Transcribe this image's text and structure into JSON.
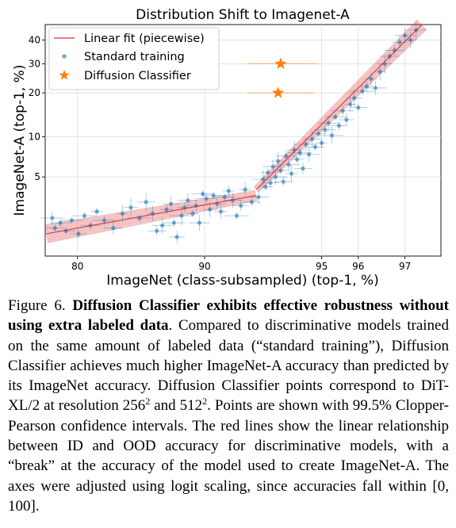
{
  "chart_data": {
    "type": "scatter",
    "title": "Distribution Shift to Imagenet-A",
    "xlabel": "ImageNet (class-subsampled) (top-1, %)",
    "ylabel": "ImageNet-A (top-1, %)",
    "x_scale": "logit",
    "y_scale": "logit",
    "xlim": [
      76.5,
      97.6
    ],
    "ylim": [
      1.2,
      47
    ],
    "x_ticks": [
      80,
      90,
      95,
      96,
      97
    ],
    "y_ticks": [
      5,
      10,
      20,
      30,
      40
    ],
    "grid": true,
    "legend_position": "top-left",
    "legend": [
      "Linear fit (piecewise)",
      "Standard training",
      "Diffusion Classifier"
    ],
    "colors": {
      "fit": "#d62728",
      "standard": "#1f77b4",
      "diffusion": "#ff7f0e"
    },
    "series": [
      {
        "name": "Linear fit (piecewise)",
        "kind": "line",
        "points": [
          [
            76.6,
            1.8
          ],
          [
            92.6,
            3.6
          ],
          [
            92.6,
            4.0
          ],
          [
            97.3,
            47
          ]
        ]
      },
      {
        "name": "Standard training",
        "kind": "scatter",
        "points": [
          [
            77.3,
            2.4
          ],
          [
            77.6,
            2.0
          ],
          [
            78.2,
            2.2
          ],
          [
            78.8,
            1.9
          ],
          [
            79.4,
            2.3
          ],
          [
            80.1,
            1.8
          ],
          [
            80.7,
            2.5
          ],
          [
            81.3,
            2.1
          ],
          [
            81.9,
            2.7
          ],
          [
            82.6,
            2.3
          ],
          [
            83.4,
            2.0
          ],
          [
            84.2,
            2.6
          ],
          [
            84.9,
            2.9
          ],
          [
            85.6,
            2.4
          ],
          [
            86.1,
            3.2
          ],
          [
            86.6,
            2.6
          ],
          [
            86.9,
            1.9
          ],
          [
            87.3,
            2.1
          ],
          [
            87.6,
            2.8
          ],
          [
            87.9,
            3.1
          ],
          [
            88.1,
            2.2
          ],
          [
            88.3,
            1.7
          ],
          [
            88.6,
            2.5
          ],
          [
            88.8,
            2.9
          ],
          [
            89.0,
            3.3
          ],
          [
            89.3,
            2.6
          ],
          [
            89.5,
            3.0
          ],
          [
            89.7,
            2.2
          ],
          [
            89.9,
            3.7
          ],
          [
            90.1,
            3.4
          ],
          [
            90.3,
            2.8
          ],
          [
            90.5,
            3.6
          ],
          [
            90.7,
            3.1
          ],
          [
            90.9,
            2.7
          ],
          [
            91.1,
            3.5
          ],
          [
            91.3,
            3.9
          ],
          [
            91.5,
            3.3
          ],
          [
            91.7,
            2.5
          ],
          [
            91.9,
            3.0
          ],
          [
            92.1,
            4.0
          ],
          [
            92.4,
            3.2
          ],
          [
            92.7,
            3.5
          ],
          [
            92.9,
            4.8
          ],
          [
            93.0,
            4.2
          ],
          [
            93.1,
            5.4
          ],
          [
            93.2,
            4.5
          ],
          [
            93.3,
            6.0
          ],
          [
            93.4,
            5.0
          ],
          [
            93.5,
            6.6
          ],
          [
            93.6,
            5.6
          ],
          [
            93.7,
            4.6
          ],
          [
            93.8,
            7.2
          ],
          [
            93.9,
            6.2
          ],
          [
            94.0,
            5.3
          ],
          [
            94.1,
            8.0
          ],
          [
            94.2,
            6.8
          ],
          [
            94.3,
            7.6
          ],
          [
            94.4,
            5.8
          ],
          [
            94.5,
            8.8
          ],
          [
            94.6,
            7.4
          ],
          [
            94.7,
            9.6
          ],
          [
            94.8,
            8.4
          ],
          [
            94.9,
            10.5
          ],
          [
            95.0,
            9.0
          ],
          [
            95.1,
            11.2
          ],
          [
            95.2,
            12.5
          ],
          [
            95.3,
            10.2
          ],
          [
            95.4,
            13.8
          ],
          [
            95.5,
            12.0
          ],
          [
            95.6,
            15.2
          ],
          [
            95.7,
            13.2
          ],
          [
            95.8,
            16.8
          ],
          [
            95.9,
            18.5
          ],
          [
            96.0,
            16.0
          ],
          [
            96.1,
            20.5
          ],
          [
            96.2,
            22.0
          ],
          [
            96.3,
            24.5
          ],
          [
            96.4,
            21.5
          ],
          [
            96.5,
            27.0
          ],
          [
            96.6,
            30.0
          ],
          [
            96.7,
            33.0
          ],
          [
            96.8,
            35.5
          ],
          [
            96.9,
            39.0
          ],
          [
            97.0,
            42.0
          ],
          [
            97.1,
            40.0
          ],
          [
            97.2,
            44.5
          ]
        ]
      },
      {
        "name": "Diffusion Classifier",
        "kind": "scatter",
        "points": [
          [
            93.6,
            30.0
          ],
          [
            93.5,
            20.0
          ]
        ]
      }
    ]
  },
  "caption": {
    "label": "Figure 6.",
    "heading": "Diffusion Classifier exhibits effective robustness without using extra labeled data",
    "text_1": ". Compared to discriminative models trained on the same amount of labeled data (“standard training”), Diffusion Classifier achieves much higher ImageNet-A accuracy than predicted by its ImageNet accuracy. Diffusion Classifier points correspond to DiT-XL/2 at resolution 256",
    "sup_1": "2",
    "text_2": " and 512",
    "sup_2": "2",
    "text_3": ". Points are shown with 99.5% Clopper-Pearson confidence intervals. The red lines show the linear relationship between ID and OOD accuracy for discriminative models, with a “break” at the accuracy of the model used to create ImageNet-A. The axes were adjusted using logit scaling, since accuracies fall within [0, 100]."
  }
}
